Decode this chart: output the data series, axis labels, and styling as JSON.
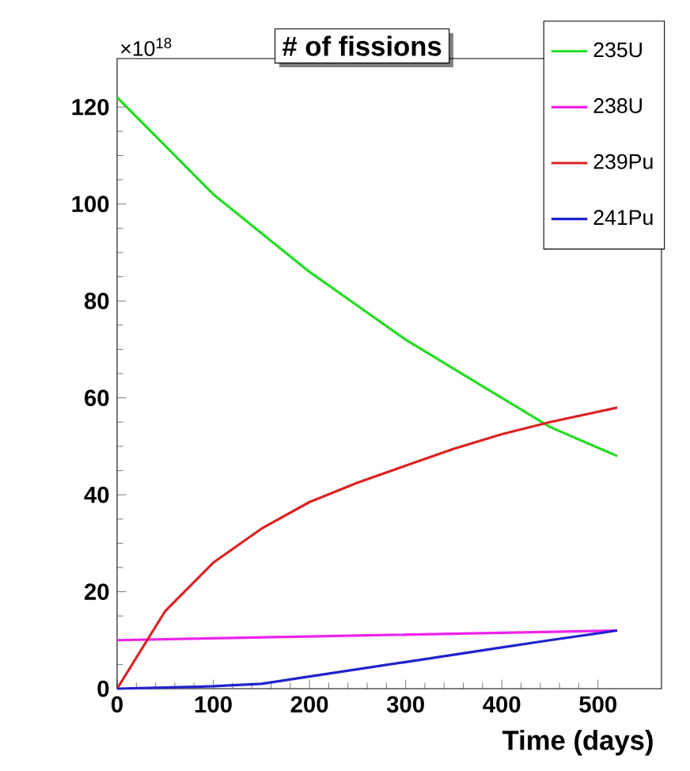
{
  "chart_data": {
    "type": "line",
    "title": "# of fissions",
    "xlabel": "Time (days)",
    "annotations": [
      "×10$^{18}$"
    ],
    "xlim": [
      0,
      566
    ],
    "ylim": [
      0,
      130
    ],
    "xticks": [
      0,
      100,
      200,
      300,
      400,
      500
    ],
    "yticks": [
      0,
      20,
      40,
      60,
      80,
      100,
      120
    ],
    "legend": "top right",
    "grid": false,
    "marker": "none",
    "line_style": "solid",
    "series": [
      {
        "name": "235U",
        "color": "#22dd22",
        "x": [
          0,
          50,
          100,
          150,
          200,
          250,
          300,
          350,
          400,
          450,
          520
        ],
        "values": [
          122,
          112,
          102,
          94,
          86,
          79,
          72,
          66,
          60,
          54,
          48
        ]
      },
      {
        "name": "238U",
        "color": "#ee22ee",
        "x": [
          0,
          260,
          520
        ],
        "values": [
          10,
          11,
          12
        ]
      },
      {
        "name": "239Pu",
        "color": "#dd2222",
        "x": [
          0,
          25,
          50,
          100,
          150,
          200,
          250,
          300,
          350,
          400,
          450,
          520
        ],
        "values": [
          0,
          8,
          16,
          26,
          33,
          38.5,
          42.5,
          46,
          49.5,
          52.5,
          55,
          58
        ]
      },
      {
        "name": "241Pu",
        "color": "#2222cc",
        "x": [
          0,
          100,
          150,
          200,
          250,
          300,
          350,
          400,
          450,
          520
        ],
        "values": [
          0,
          0.5,
          1,
          2.5,
          4,
          5.5,
          7,
          8.5,
          10,
          12
        ]
      }
    ]
  }
}
